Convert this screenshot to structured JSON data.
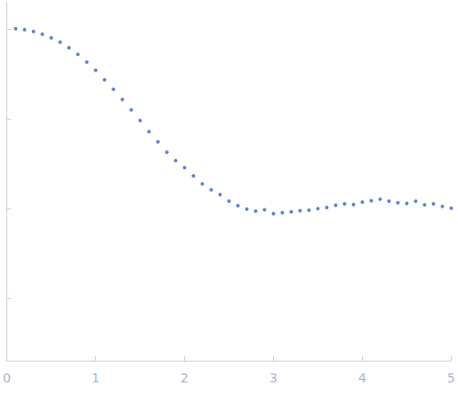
{
  "chart_data": {
    "type": "scatter",
    "color": "#3a66b8",
    "marker": "circle",
    "log": "y",
    "grid": false,
    "tick_labels": "x",
    "x": [
      0.1,
      0.2,
      0.3,
      0.4,
      0.5,
      0.6,
      0.7,
      0.8,
      0.9,
      1.0,
      1.1,
      1.2,
      1.3,
      1.4,
      1.5,
      1.6,
      1.7,
      1.8,
      1.9,
      2.0,
      2.1,
      2.2,
      2.3,
      2.4,
      2.5,
      2.6,
      2.7,
      2.8,
      2.9,
      3.0,
      3.1,
      3.2,
      3.3,
      3.4,
      3.5,
      3.6,
      3.7,
      3.8,
      3.9,
      4.0,
      4.1,
      4.2,
      4.3,
      4.4,
      4.5,
      4.6,
      4.7,
      4.8,
      4.9,
      5.0
    ],
    "values": [
      1.0,
      0.98,
      0.933,
      0.87,
      0.793,
      0.71,
      0.615,
      0.52,
      0.425,
      0.345,
      0.27,
      0.212,
      0.163,
      0.125,
      0.095,
      0.0715,
      0.055,
      0.042,
      0.034,
      0.0283,
      0.023,
      0.0187,
      0.016,
      0.0142,
      0.012,
      0.0107,
      0.0098,
      0.0093,
      0.0096,
      0.0087,
      0.0089,
      0.0091,
      0.0094,
      0.0095,
      0.0099,
      0.0102,
      0.0108,
      0.0112,
      0.011,
      0.0117,
      0.0121,
      0.0126,
      0.012,
      0.0115,
      0.0113,
      0.012,
      0.0109,
      0.0112,
      0.0105,
      0.01
    ],
    "xlim": [
      0,
      5
    ],
    "xticks": [
      0,
      1,
      2,
      3,
      4,
      5
    ],
    "ylim": [
      0.0002,
      2
    ],
    "yticks": [
      0.001,
      0.01,
      0.1,
      1
    ]
  }
}
